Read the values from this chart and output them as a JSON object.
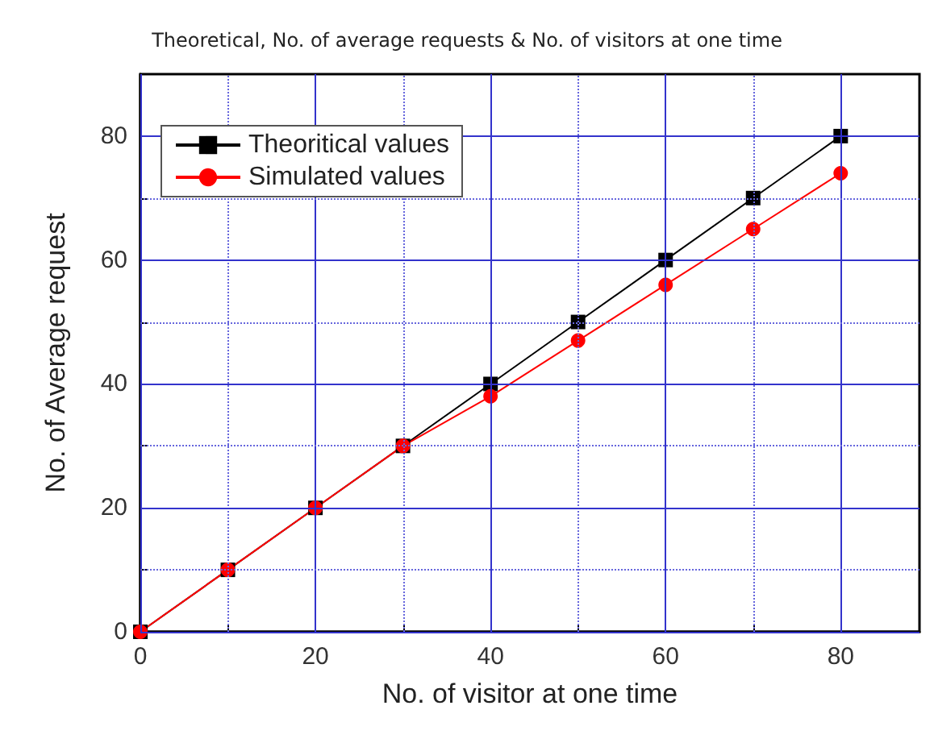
{
  "chart_data": {
    "type": "line",
    "title": "Theoretical, No. of average requests & No. of visitors at one time",
    "xlabel": "No. of visitor at one time",
    "ylabel": "No. of Average request",
    "x": [
      0,
      10,
      20,
      30,
      40,
      50,
      60,
      70,
      80
    ],
    "series": [
      {
        "name": "Theoritical values",
        "color": "#000000",
        "marker": "square",
        "values": [
          0,
          10,
          20,
          30,
          40,
          50,
          60,
          70,
          80
        ]
      },
      {
        "name": "Simulated values",
        "color": "#ff0000",
        "marker": "circle",
        "values": [
          0,
          10,
          20,
          30,
          38,
          47,
          56,
          65,
          74
        ]
      }
    ],
    "xlim": [
      0,
      89
    ],
    "xticks": [
      0,
      {
        "value": 10,
        "label": null
      },
      20,
      {
        "value": 30,
        "label": null
      },
      40,
      {
        "value": 50,
        "label": null
      },
      60,
      {
        "value": 70,
        "label": null
      },
      80
    ],
    "ylim": [
      0,
      90
    ],
    "yticks": [
      0,
      {
        "value": 10,
        "label": null
      },
      20,
      {
        "value": 30,
        "label": null
      },
      40,
      {
        "value": 50,
        "label": null
      },
      60,
      {
        "value": 70,
        "label": null
      },
      80
    ],
    "grid": true,
    "legend": "top left",
    "line_style": "solid"
  }
}
